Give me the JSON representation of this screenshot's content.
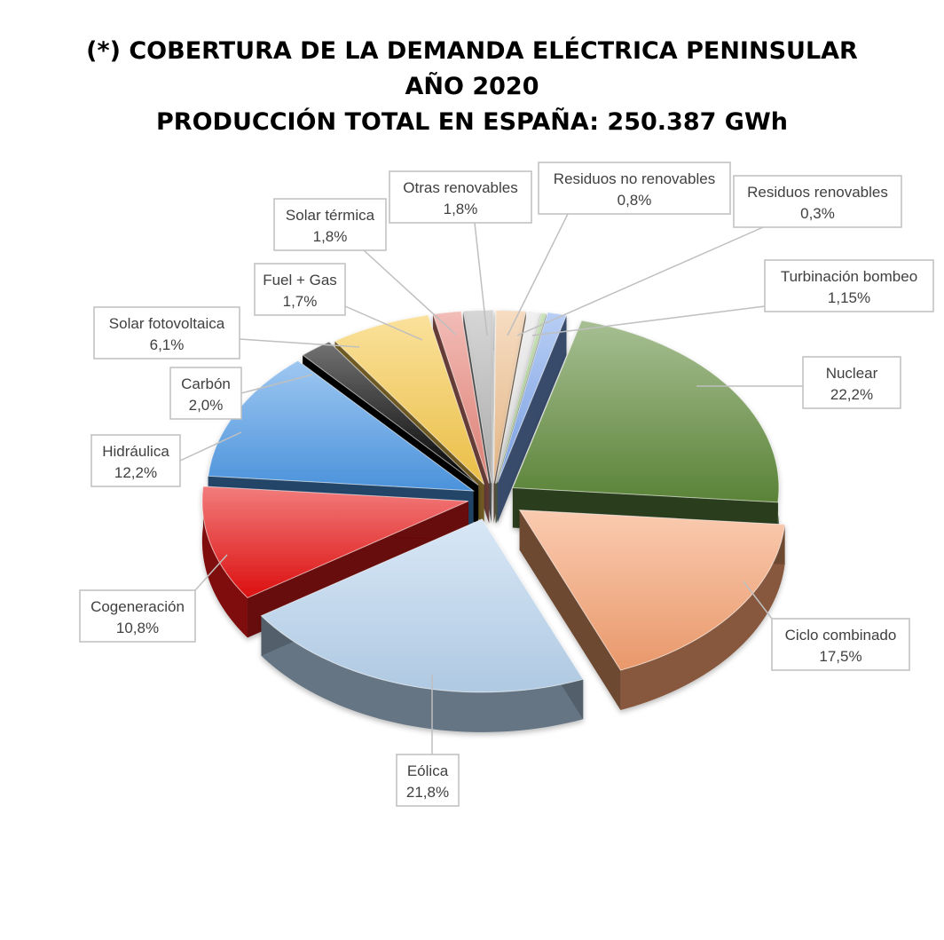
{
  "chart_data": {
    "type": "pie",
    "title_lines": [
      "(*) COBERTURA DE LA DEMANDA ELÉCTRICA PENINSULAR",
      "AÑO 2020",
      "PRODUCCIÓN TOTAL EN ESPAÑA: 250.387 GWh"
    ],
    "legend": "none",
    "slices": [
      {
        "name": "Nuclear",
        "value": 22.2,
        "label": "22,2%",
        "color": "#5f8a3a"
      },
      {
        "name": "Ciclo combinado",
        "value": 17.5,
        "label": "17,5%",
        "color": "#f5a070"
      },
      {
        "name": "Eólica",
        "value": 21.8,
        "label": "21,8%",
        "color": "#b8d4ee"
      },
      {
        "name": "Cogeneración",
        "value": 10.8,
        "label": "10,8%",
        "color": "#e81010"
      },
      {
        "name": "Hidráulica",
        "value": 12.2,
        "label": "12,2%",
        "color": "#4e9ae6"
      },
      {
        "name": "Carbón",
        "value": 2.0,
        "label": "2,0%",
        "color": "#000000"
      },
      {
        "name": "Solar fotovoltaica",
        "value": 6.1,
        "label": "6,1%",
        "color": "#f6c84a"
      },
      {
        "name": "Fuel + Gas",
        "value": 1.7,
        "label": "1,7%",
        "color": "#e8867a"
      },
      {
        "name": "Solar térmica",
        "value": 1.8,
        "label": "1,8%",
        "color": "#b4b4b4"
      },
      {
        "name": "Otras renovables",
        "value": 1.8,
        "label": "1,8%",
        "color": "#efc08e"
      },
      {
        "name": "Residuos no renovables",
        "value": 0.8,
        "label": "0,8%",
        "color": "#e4e4e4"
      },
      {
        "name": "Residuos renovables",
        "value": 0.3,
        "label": "0,3%",
        "color": "#a6cf8a"
      },
      {
        "name": "Turbinación bombeo",
        "value": 1.15,
        "label": "1,15%",
        "color": "#7ea6ec"
      }
    ]
  }
}
